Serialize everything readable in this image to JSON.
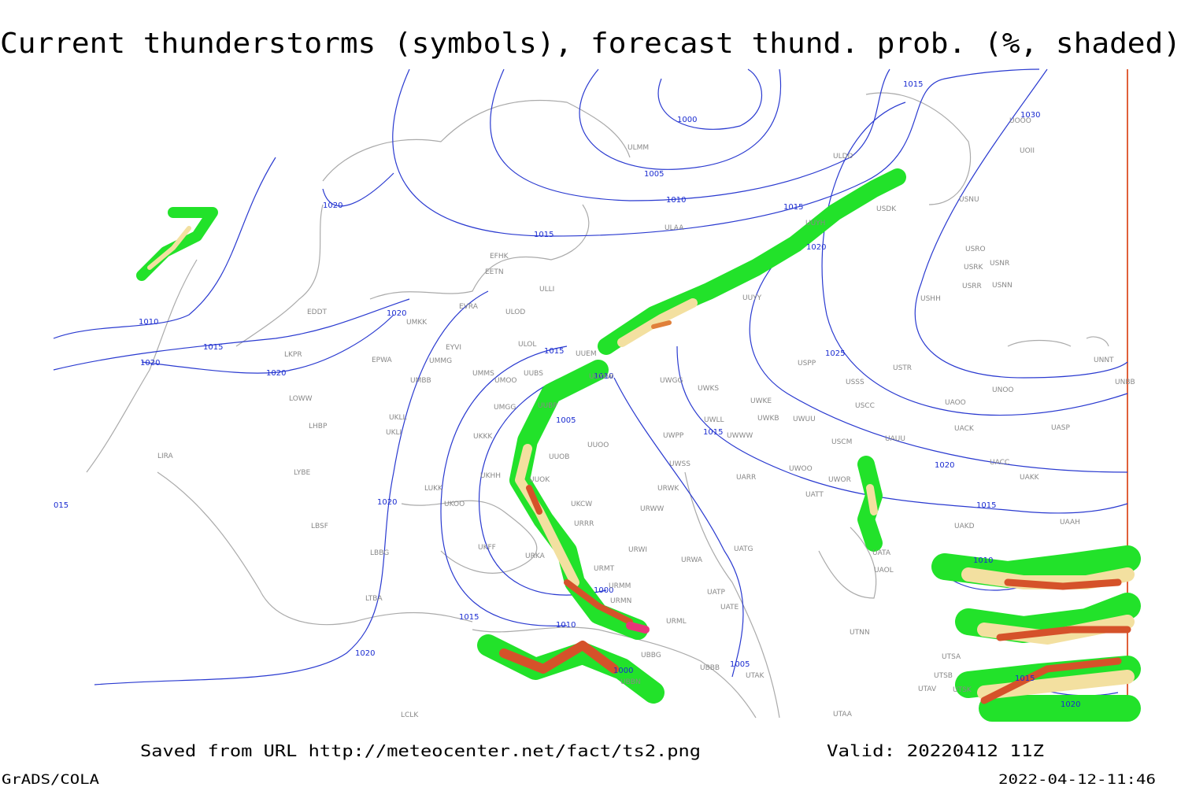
{
  "header": {
    "title": "Current thunderstorms (symbols), forecast thund. prob. (%, shaded)"
  },
  "footer": {
    "source": "Saved from URL http://meteocenter.net/fact/ts2.png",
    "valid": "Valid: 20220412 11Z",
    "software": "GrADS/COLA",
    "timestamp": "2022-04-12-11:46"
  },
  "isobar_labels": [
    "1000",
    "1005",
    "1010",
    "1015",
    "1015",
    "1020",
    "1020",
    "1010",
    "1015",
    "1020",
    "1020",
    "1020",
    "1015",
    "1010",
    "1005",
    "1015",
    "1025",
    "1030",
    "1015",
    "1020",
    "1015",
    "1010",
    "1000",
    "1015",
    "1010",
    "1020",
    "1020",
    "1005",
    "1000",
    "1015",
    "1020",
    "015"
  ],
  "stations": [
    "ULMM",
    "ULDD",
    "ULAA",
    "USDK",
    "USNU",
    "USRO",
    "USNR",
    "USRK",
    "USRR",
    "USNN",
    "USHH",
    "UOOO",
    "UOII",
    "UNNT",
    "UNBB",
    "UNOO",
    "UACK",
    "UASP",
    "UACC",
    "UAKK",
    "UAKD",
    "UAAH",
    "UATA",
    "UAOL",
    "UTNN",
    "UTSA",
    "UTSB",
    "UTAV",
    "UTSK",
    "UTAA",
    "UAOO",
    "USSS",
    "USCC",
    "USCM",
    "UAUU",
    "USTR",
    "USPP",
    "UWKE",
    "UWKB",
    "UWUU",
    "UWOO",
    "UWOR",
    "UATT",
    "UARR",
    "UWSS",
    "UWPP",
    "UWWW",
    "UWLL",
    "UWKS",
    "UWGG",
    "UUYY",
    "UUYH",
    "UUEM",
    "UUWW",
    "UUOO",
    "UUOB",
    "UUOK",
    "UKHH",
    "UKOO",
    "UKCW",
    "URRR",
    "UKFF",
    "URKA",
    "URMT",
    "URMM",
    "URMN",
    "URWI",
    "URWA",
    "UATG",
    "UATE",
    "UATP",
    "URML",
    "UBBG",
    "UBBB",
    "UBBN",
    "UTAK",
    "URWW",
    "URWK",
    "UMMS",
    "UMOO",
    "UUBS",
    "UMGG",
    "UUBP",
    "UKKK",
    "UKLL",
    "UKLI",
    "UMBB",
    "UMMG",
    "UMKK",
    "EYVI",
    "ULOL",
    "ULOD",
    "EVRA",
    "EFHK",
    "EETN",
    "ULLI",
    "EDDT",
    "EPWA",
    "LKPR",
    "LOWW",
    "LHBP",
    "LIRA",
    "LYBE",
    "LBSF",
    "LBBG",
    "LTBA",
    "LUKK",
    "LCLK"
  ]
}
